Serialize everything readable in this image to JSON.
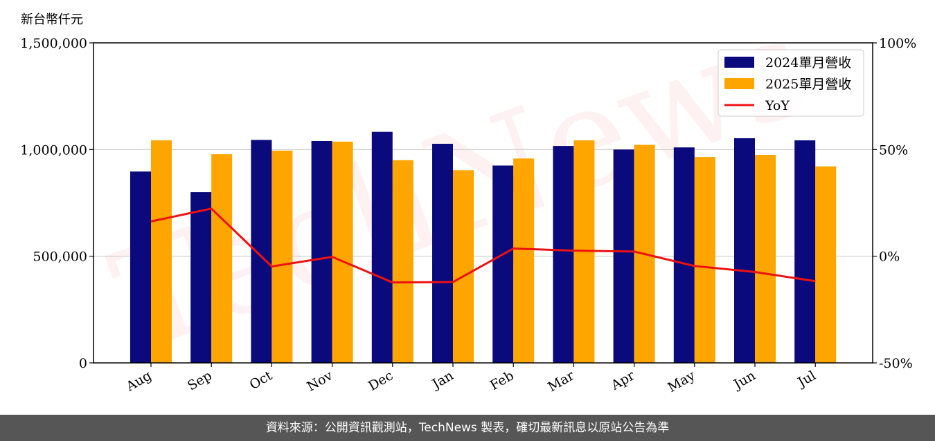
{
  "unit_label": "新台幣仟元",
  "footer_text": "資料來源：公開資訊觀測站，TechNews 製表，確切最新訊息以原站公告為準",
  "watermark_text": "TechNews",
  "colors": {
    "series_2024": "#0a0a7d",
    "series_2025": "#ffa500",
    "yoy": "#ee1111",
    "grid": "#cccccc",
    "footer_bg": "#565656"
  },
  "chart_data": {
    "type": "bar",
    "categories": [
      "Aug",
      "Sep",
      "Oct",
      "Nov",
      "Dec",
      "Jan",
      "Feb",
      "Mar",
      "Apr",
      "May",
      "Jun",
      "Jul"
    ],
    "series": [
      {
        "name": "2024單月營收",
        "values": [
          897000,
          800000,
          1045000,
          1040000,
          1083000,
          1027000,
          925000,
          1017000,
          1000000,
          1010000,
          1053000,
          1043000
        ]
      },
      {
        "name": "2025單月營收",
        "values": [
          1043000,
          978000,
          995000,
          1037000,
          950000,
          903000,
          958000,
          1043000,
          1022000,
          965000,
          975000,
          921000
        ]
      }
    ],
    "line_series": {
      "name": "YoY",
      "axis": "right",
      "values": [
        16.3,
        22.3,
        -4.8,
        -0.3,
        -12.3,
        -12.1,
        3.6,
        2.6,
        2.2,
        -4.6,
        -7.4,
        -11.7
      ]
    },
    "yticks_left": [
      "0",
      "500,000",
      "1,000,000",
      "1,500,000"
    ],
    "yticks_right": [
      "-50%",
      "0%",
      "50%",
      "100%"
    ],
    "ylim_left": [
      0,
      1500000
    ],
    "ylim_right": [
      -50,
      100
    ],
    "grid": true,
    "legend_position": "top-right"
  }
}
